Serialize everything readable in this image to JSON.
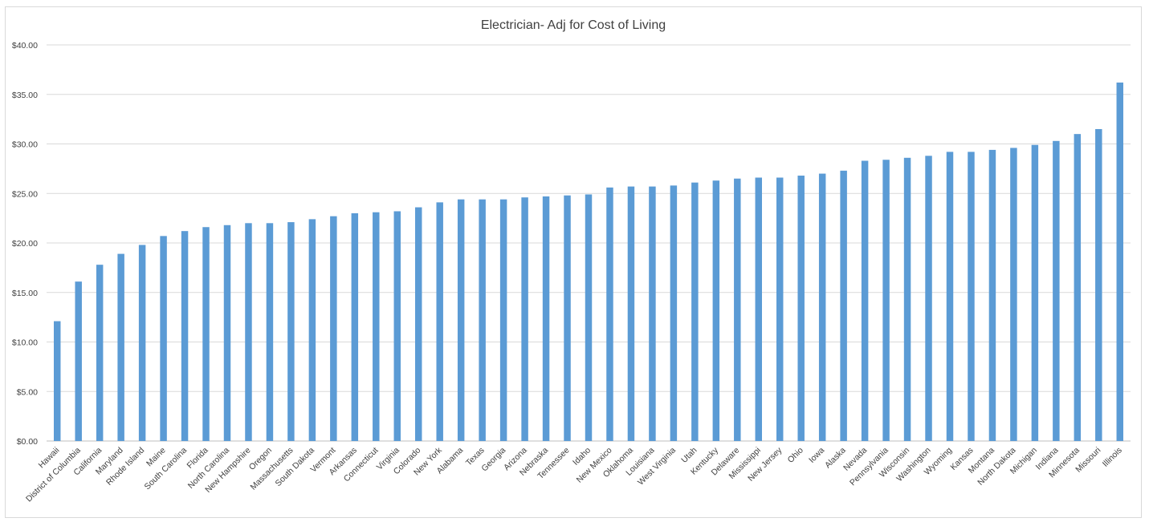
{
  "chart_data": {
    "type": "bar",
    "title": "Electrician- Adj for Cost of Living",
    "xlabel": "",
    "ylabel": "",
    "ylim": [
      0,
      40
    ],
    "yticks": [
      0,
      5,
      10,
      15,
      20,
      25,
      30,
      35,
      40
    ],
    "ytick_labels": [
      "$0.00",
      "$5.00",
      "$10.00",
      "$15.00",
      "$20.00",
      "$25.00",
      "$30.00",
      "$35.00",
      "$40.00"
    ],
    "grid": true,
    "legend": "none",
    "bar_color": "#5b9bd5",
    "categories": [
      "Hawaii",
      "District of Columbia",
      "California",
      "Maryland",
      "Rhode Island",
      "Maine",
      "South Carolina",
      "Florida",
      "North Carolina",
      "New Hampshire",
      "Oregon",
      "Massachusetts",
      "South Dakota",
      "Vermont",
      "Arkansas",
      "Connecticut",
      "Virginia",
      "Colorado",
      "New York",
      "Alabama",
      "Texas",
      "Georgia",
      "Arizona",
      "Nebraska",
      "Tennessee",
      "Idaho",
      "New Mexico",
      "Oklahoma",
      "Louisiana",
      "West Virginia",
      "Utah",
      "Kentucky",
      "Delaware",
      "Mississippi",
      "New Jersey",
      "Ohio",
      "Iowa",
      "Alaska",
      "Nevada",
      "Pennsylvania",
      "Wisconsin",
      "Washington",
      "Wyoming",
      "Kansas",
      "Montana",
      "North Dakota",
      "Michigan",
      "Indiana",
      "Minnesota",
      "Missouri",
      "Illinois"
    ],
    "values": [
      12.1,
      16.1,
      17.8,
      18.9,
      19.8,
      20.7,
      21.2,
      21.6,
      21.8,
      22.0,
      22.0,
      22.1,
      22.4,
      22.7,
      23.0,
      23.1,
      23.2,
      23.6,
      24.1,
      24.4,
      24.4,
      24.4,
      24.6,
      24.7,
      24.8,
      24.9,
      25.6,
      25.7,
      25.7,
      25.8,
      26.1,
      26.3,
      26.5,
      26.6,
      26.6,
      26.8,
      27.0,
      27.3,
      28.3,
      28.4,
      28.6,
      28.8,
      29.2,
      29.2,
      29.4,
      29.6,
      29.9,
      30.3,
      31.0,
      31.5,
      36.2
    ]
  }
}
